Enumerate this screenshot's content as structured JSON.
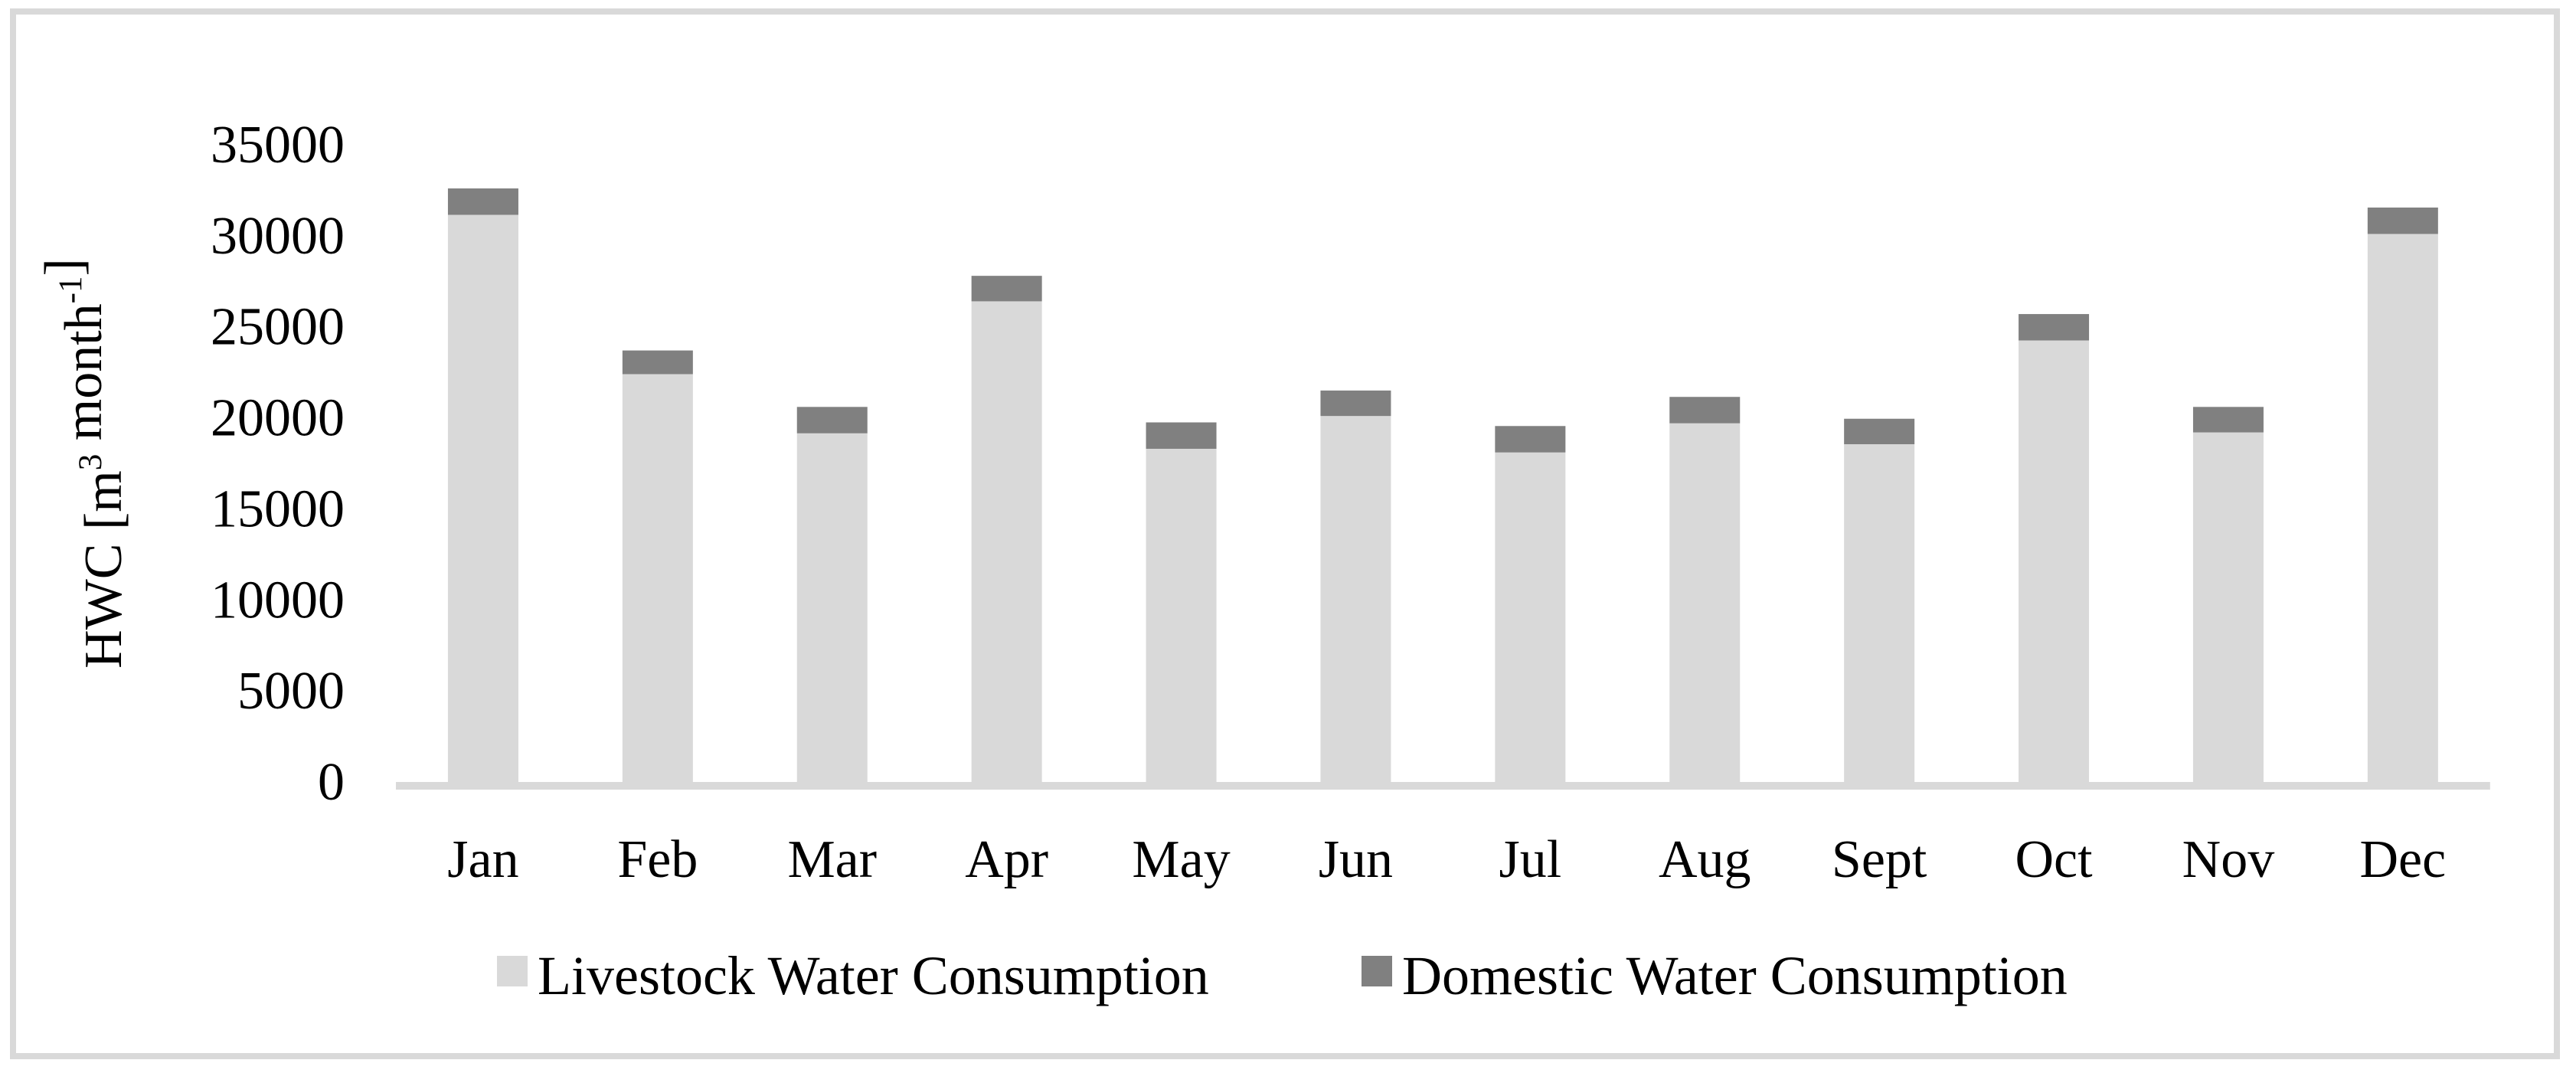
{
  "figure": {
    "background": "#ffffff",
    "frame_color": "#d9d9d9"
  },
  "chart_data": {
    "type": "bar",
    "stacked": true,
    "title": "",
    "xlabel": "",
    "ylabel": "HWC [m3 month-1]",
    "ylabel_segments": [
      {
        "t": "HWC [m",
        "sup": false
      },
      {
        "t": "3",
        "sup": true
      },
      {
        "t": " month",
        "sup": false
      },
      {
        "t": "-1",
        "sup": true
      },
      {
        "t": "]",
        "sup": false
      }
    ],
    "categories": [
      "Jan",
      "Feb",
      "Mar",
      "Apr",
      "May",
      "Jun",
      "Jul",
      "Aug",
      "Sept",
      "Oct",
      "Nov",
      "Dec"
    ],
    "series": [
      {
        "name": "Livestock Water Consumption",
        "color": "#d9d9d9",
        "values": [
          31150,
          22400,
          19150,
          26400,
          18300,
          20100,
          18100,
          19700,
          18550,
          24250,
          19200,
          30100
        ]
      },
      {
        "name": "Domestic Water Consumption",
        "color": "#808080",
        "values": [
          1450,
          1300,
          1450,
          1400,
          1450,
          1400,
          1450,
          1450,
          1400,
          1450,
          1400,
          1450
        ]
      }
    ],
    "ylim": [
      0,
      35000
    ],
    "ytick_step": 5000,
    "ytick_labels": [
      "0",
      "5000",
      "10000",
      "15000",
      "20000",
      "25000",
      "30000",
      "35000"
    ],
    "gridlines": false,
    "legend_position": "bottom",
    "axis_line_color": "#d9d9d9",
    "text_color": "#000000"
  }
}
